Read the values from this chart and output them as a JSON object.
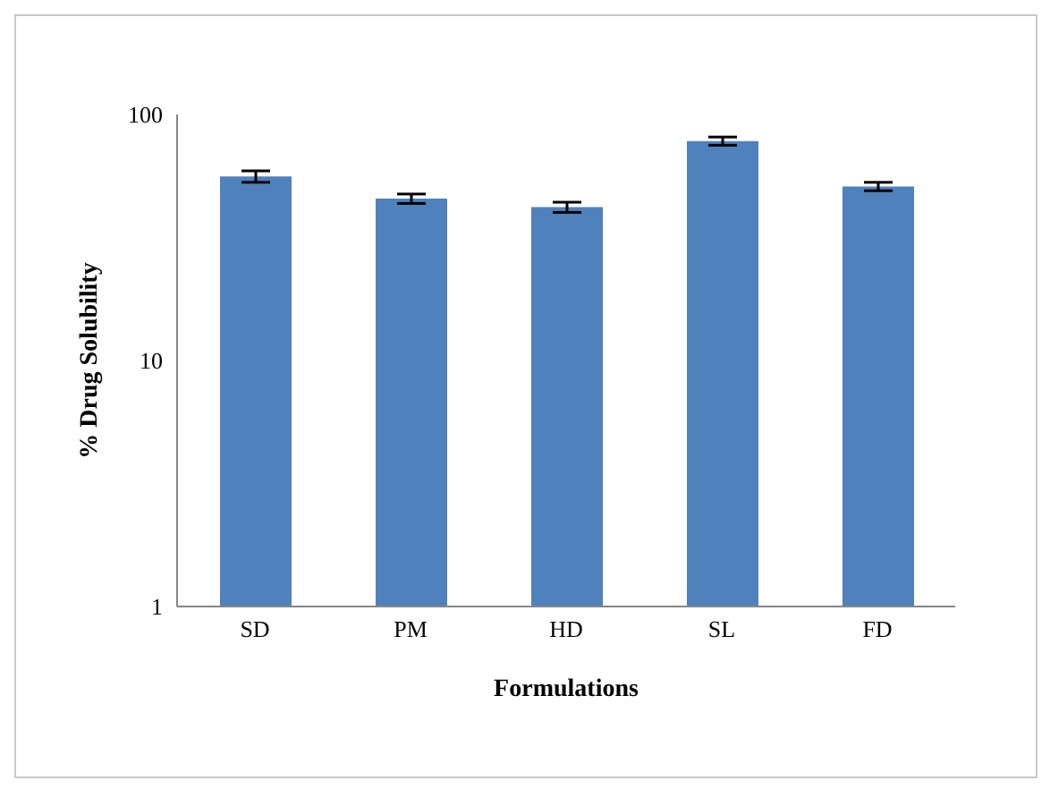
{
  "chart_data": {
    "type": "bar",
    "xlabel": "Formulations",
    "ylabel": "% Drug Solubility",
    "categories": [
      "SD",
      "PM",
      "HD",
      "SL",
      "FD"
    ],
    "values": [
      56,
      45.5,
      42,
      78,
      51
    ],
    "errors": [
      3,
      2,
      2,
      3,
      2
    ],
    "color": "#4f81bd",
    "log": true,
    "ylim": [
      1,
      100
    ],
    "yticks": [
      1,
      10,
      100
    ],
    "grid": false,
    "legend": false
  }
}
